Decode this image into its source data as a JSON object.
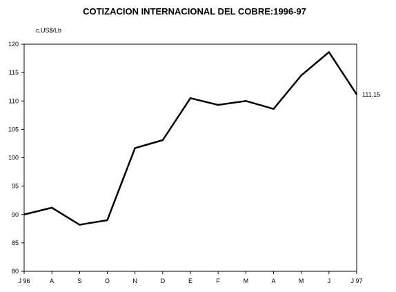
{
  "chart_data": {
    "type": "line",
    "title": "COTIZACION INTERNACIONAL DEL COBRE:1996-97",
    "ylabel": "c.US$/Lb",
    "xlabel": "",
    "categories": [
      "J 96",
      "A",
      "S",
      "O",
      "N",
      "D",
      "E",
      "F",
      "M",
      "A",
      "M",
      "J",
      "J 97"
    ],
    "series": [
      {
        "values": [
          90.0,
          91.2,
          88.2,
          89.0,
          101.7,
          103.1,
          110.5,
          109.3,
          110.0,
          108.6,
          114.5,
          118.6,
          111.15
        ]
      }
    ],
    "ylim": [
      80,
      120
    ],
    "yticks": [
      "80",
      "85",
      "90",
      "95",
      "100",
      "105",
      "110",
      "115",
      "120"
    ],
    "grid": false,
    "annotations": [
      {
        "index": 12,
        "text": "111,15"
      }
    ],
    "line_color": "#000000"
  }
}
